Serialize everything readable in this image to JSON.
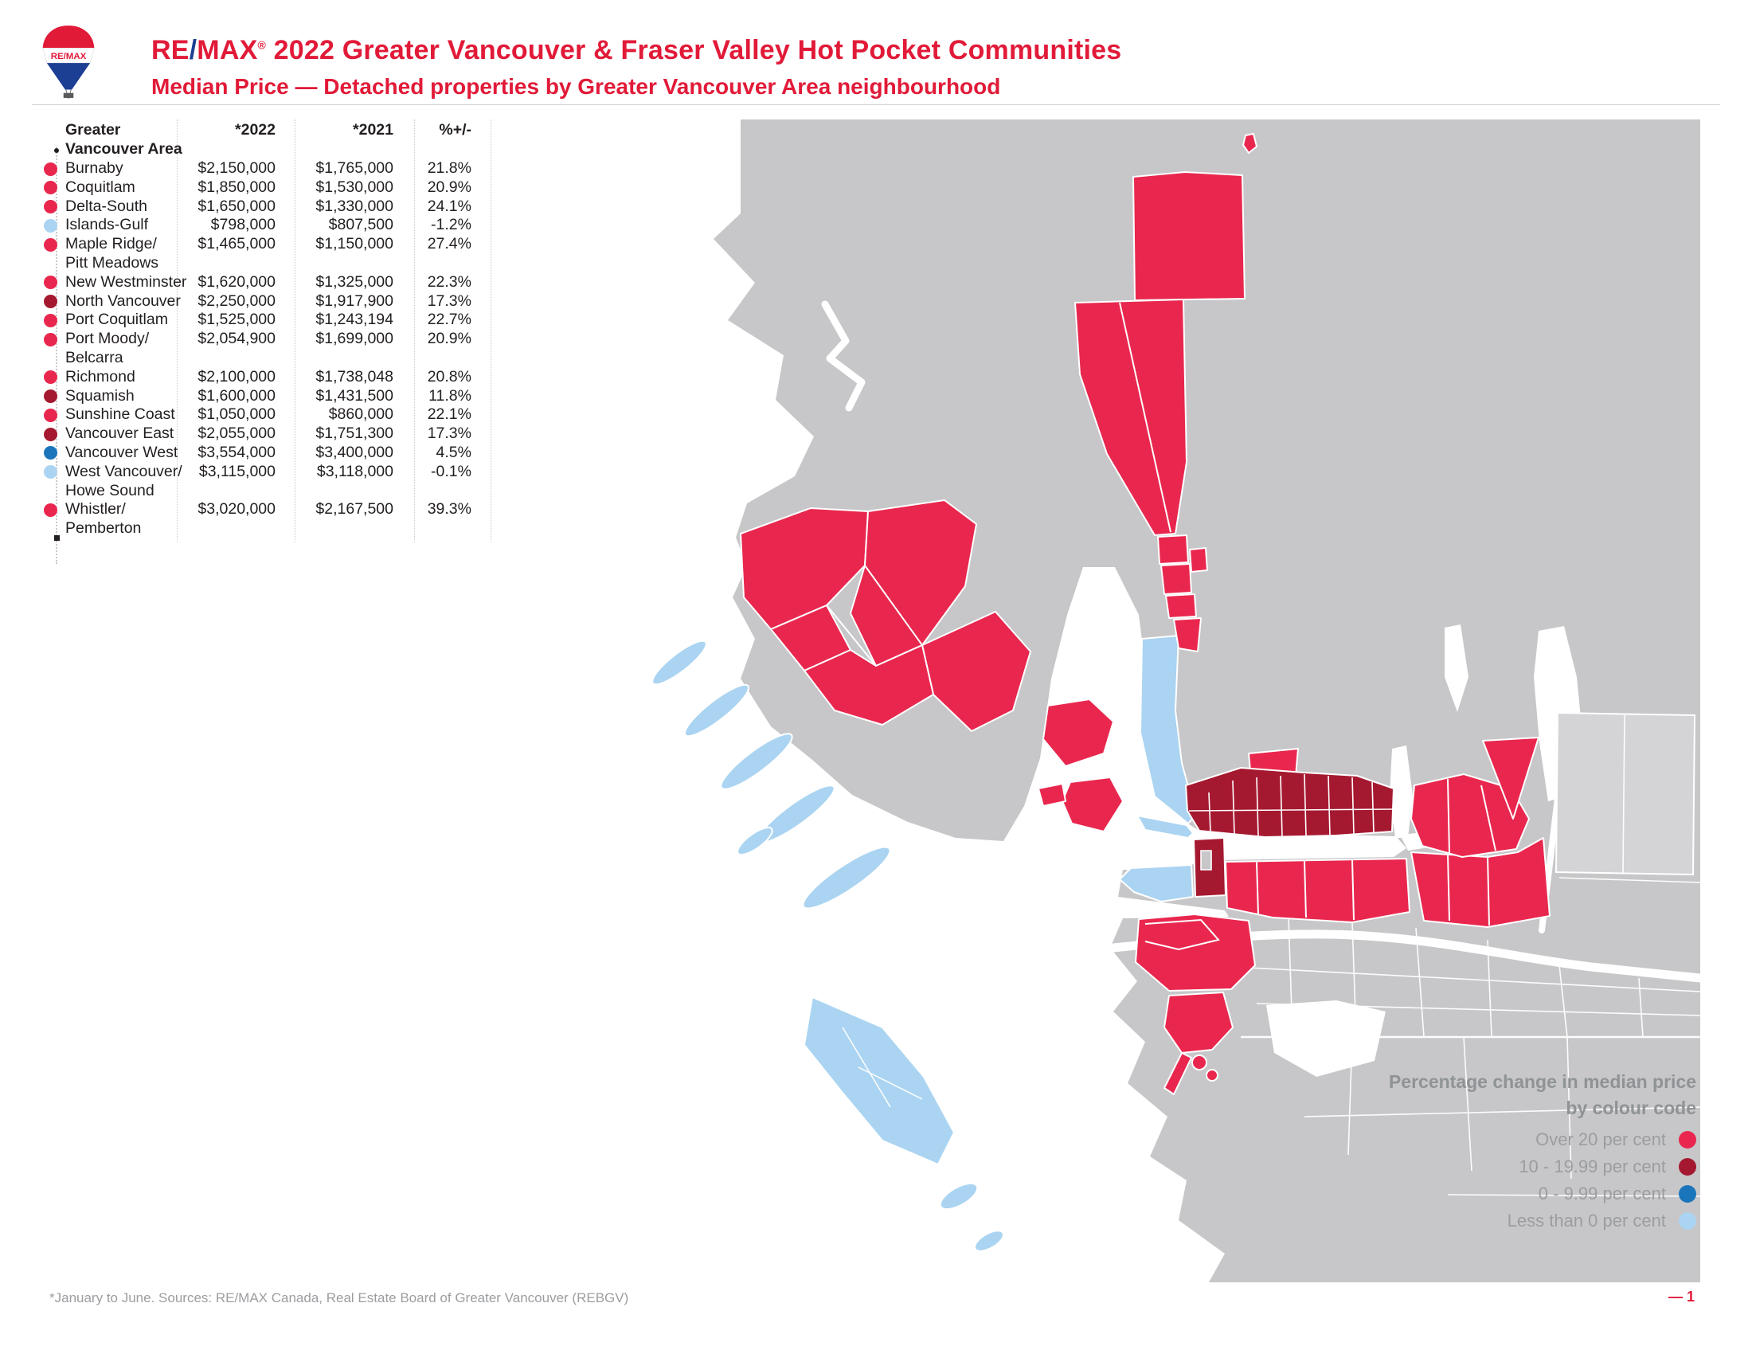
{
  "header": {
    "brand_re": "RE",
    "brand_slash": "/",
    "brand_max": "MAX",
    "brand_reg": "®",
    "title": " 2022 Greater Vancouver & Fraser Valley Hot Pocket Communities",
    "subtitle": "Median Price — Detached properties by Greater Vancouver Area neighbourhood"
  },
  "table": {
    "header_col1_line1": "Greater",
    "header_col1_line2": "Vancouver Area",
    "header_2022": "*2022",
    "header_2021": "*2021",
    "header_change": "%+/-",
    "rows": [
      {
        "name": "Burnaby",
        "name2": "",
        "y2022": "$2,150,000",
        "y2021": "$1,765,000",
        "change": "21.8%",
        "category": "over20"
      },
      {
        "name": "Coquitlam",
        "name2": "",
        "y2022": "$1,850,000",
        "y2021": "$1,530,000",
        "change": "20.9%",
        "category": "over20"
      },
      {
        "name": "Delta-South",
        "name2": "",
        "y2022": "$1,650,000",
        "y2021": "$1,330,000",
        "change": "24.1%",
        "category": "over20"
      },
      {
        "name": "Islands-Gulf",
        "name2": "",
        "y2022": "$798,000",
        "y2021": "$807,500",
        "change": "-1.2%",
        "category": "below0"
      },
      {
        "name": "Maple Ridge/",
        "name2": "Pitt Meadows",
        "y2022": "$1,465,000",
        "y2021": "$1,150,000",
        "change": "27.4%",
        "category": "over20"
      },
      {
        "name": "New Westminster",
        "name2": "",
        "y2022": "$1,620,000",
        "y2021": "$1,325,000",
        "change": "22.3%",
        "category": "over20"
      },
      {
        "name": "North Vancouver",
        "name2": "",
        "y2022": "$2,250,000",
        "y2021": "$1,917,900",
        "change": "17.3%",
        "category": "mid10"
      },
      {
        "name": "Port Coquitlam",
        "name2": "",
        "y2022": "$1,525,000",
        "y2021": "$1,243,194",
        "change": "22.7%",
        "category": "over20"
      },
      {
        "name": "Port Moody/",
        "name2": "Belcarra",
        "y2022": "$2,054,900",
        "y2021": "$1,699,000",
        "change": "20.9%",
        "category": "over20"
      },
      {
        "name": "Richmond",
        "name2": "",
        "y2022": "$2,100,000",
        "y2021": "$1,738,048",
        "change": "20.8%",
        "category": "over20"
      },
      {
        "name": "Squamish",
        "name2": "",
        "y2022": "$1,600,000",
        "y2021": "$1,431,500",
        "change": "11.8%",
        "category": "mid10"
      },
      {
        "name": "Sunshine Coast",
        "name2": "",
        "y2022": "$1,050,000",
        "y2021": "$860,000",
        "change": "22.1%",
        "category": "over20"
      },
      {
        "name": "Vancouver East",
        "name2": "",
        "y2022": "$2,055,000",
        "y2021": "$1,751,300",
        "change": "17.3%",
        "category": "mid10"
      },
      {
        "name": "Vancouver West",
        "name2": "",
        "y2022": "$3,554,000",
        "y2021": "$3,400,000",
        "change": "4.5%",
        "category": "low0"
      },
      {
        "name": "West Vancouver/",
        "name2": "Howe Sound",
        "y2022": "$3,115,000",
        "y2021": "$3,118,000",
        "change": "-0.1%",
        "category": "below0"
      },
      {
        "name": "Whistler/",
        "name2": "Pemberton",
        "y2022": "$3,020,000",
        "y2021": "$2,167,500",
        "change": "39.3%",
        "category": "over20"
      }
    ]
  },
  "legend": {
    "title1": "Percentage change in median price",
    "title2": "by colour code",
    "items": [
      {
        "label": "Over 20 per cent",
        "category": "over20"
      },
      {
        "label": "10 - 19.99 per cent",
        "category": "mid10"
      },
      {
        "label": "0 - 9.99 per cent",
        "category": "low0"
      },
      {
        "label": "Less than 0 per cent",
        "category": "below0"
      }
    ]
  },
  "footer": {
    "note": "*January to June. Sources: RE/MAX Canada, Real Estate Board of Greater Vancouver (REBGV)",
    "page": "— 1"
  },
  "colors": {
    "over20": "#e9274e",
    "mid10": "#a51930",
    "low0": "#1b75bb",
    "below0": "#aad4f1",
    "land": "#c7c7c9",
    "land_light": "#d4d4d6",
    "water": "#ffffff",
    "brand_red": "#e11a38",
    "brand_blue": "#1c3f94"
  },
  "chart_data": {
    "type": "table",
    "title": "RE/MAX 2022 Greater Vancouver & Fraser Valley Hot Pocket Communities — Median Price, Detached properties by Greater Vancouver Area neighbourhood",
    "columns": [
      "Greater Vancouver Area",
      "*2022 median price ($)",
      "*2021 median price ($)",
      "% +/-"
    ],
    "rows": [
      [
        "Burnaby",
        2150000,
        1765000,
        21.8
      ],
      [
        "Coquitlam",
        1850000,
        1530000,
        20.9
      ],
      [
        "Delta-South",
        1650000,
        1330000,
        24.1
      ],
      [
        "Islands-Gulf",
        798000,
        807500,
        -1.2
      ],
      [
        "Maple Ridge/Pitt Meadows",
        1465000,
        1150000,
        27.4
      ],
      [
        "New Westminster",
        1620000,
        1325000,
        22.3
      ],
      [
        "North Vancouver",
        2250000,
        1917900,
        17.3
      ],
      [
        "Port Coquitlam",
        1525000,
        1243194,
        22.7
      ],
      [
        "Port Moody/Belcarra",
        2054900,
        1699000,
        20.9
      ],
      [
        "Richmond",
        2100000,
        1738048,
        20.8
      ],
      [
        "Squamish",
        1600000,
        1431500,
        11.8
      ],
      [
        "Sunshine Coast",
        1050000,
        860000,
        22.1
      ],
      [
        "Vancouver East",
        2055000,
        1751300,
        17.3
      ],
      [
        "Vancouver West",
        3554000,
        3400000,
        4.5
      ],
      [
        "West Vancouver/Howe Sound",
        3115000,
        3118000,
        -0.1
      ],
      [
        "Whistler/Pemberton",
        3020000,
        2167500,
        39.3
      ]
    ],
    "map": {
      "type": "choropleth",
      "legend_title": "Percentage change in median price by colour code",
      "classes": [
        {
          "label": "Over 20 per cent",
          "color": "#e9274e"
        },
        {
          "label": "10 - 19.99 per cent",
          "color": "#a51930"
        },
        {
          "label": "0 - 9.99 per cent",
          "color": "#1b75bb"
        },
        {
          "label": "Less than 0 per cent",
          "color": "#aad4f1"
        }
      ]
    },
    "footnote": "*January to June. Sources: RE/MAX Canada, Real Estate Board of Greater Vancouver (REBGV)"
  }
}
